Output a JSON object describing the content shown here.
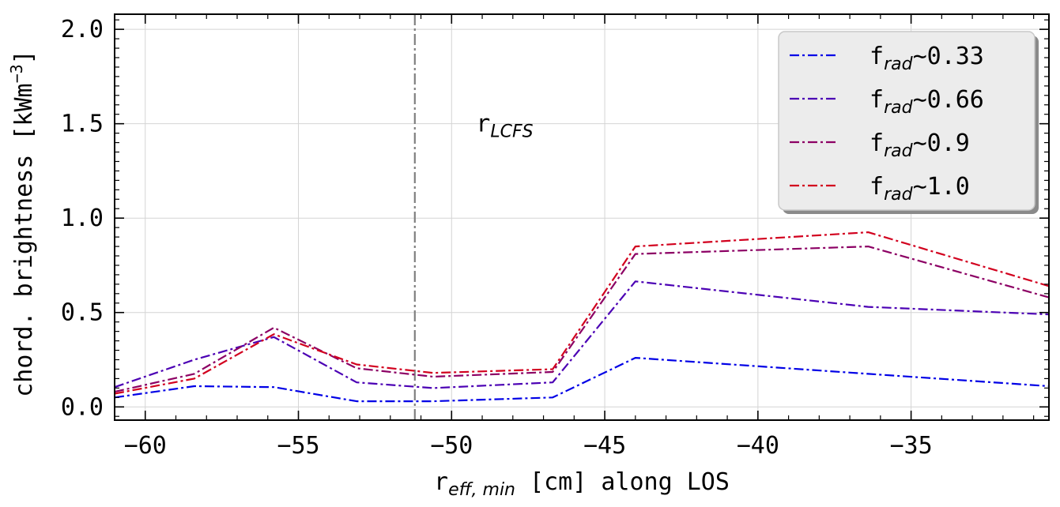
{
  "chart_data": {
    "type": "line",
    "xlabel": {
      "main": "r",
      "sub": "eff, min",
      "rest": " [cm] along LOS"
    },
    "ylabel": {
      "main": "chord. brightness [kWm",
      "sup": "−3",
      "end": "]"
    },
    "xlim": [
      -61.0,
      -30.5
    ],
    "ylim": [
      -0.07,
      2.08
    ],
    "xticks": [
      -60,
      -55,
      -50,
      -45,
      -40,
      -35
    ],
    "xtick_labels": [
      "−60",
      "−55",
      "−50",
      "−45",
      "−40",
      "−35"
    ],
    "yticks": [
      0.0,
      0.5,
      1.0,
      1.5,
      2.0
    ],
    "ytick_labels": [
      "0.0",
      "0.5",
      "1.0",
      "1.5",
      "2.0"
    ],
    "grid": true,
    "legend_position": "top-right",
    "x": [
      -61.0,
      -58.4,
      -55.8,
      -53.1,
      -50.6,
      -46.7,
      -44.0,
      -36.4,
      -30.5
    ],
    "series": [
      {
        "name": "f_rad ~ 0.33",
        "label_main": "f",
        "label_sub": "rad",
        "label_rest": "∼0.33",
        "color": "#0000e6",
        "values": [
          0.05,
          0.11,
          0.105,
          0.03,
          0.03,
          0.05,
          0.26,
          0.175,
          0.11
        ]
      },
      {
        "name": "f_rad ~ 0.66",
        "label_main": "f",
        "label_sub": "rad",
        "label_rest": "∼0.66",
        "color": "#4b00b4",
        "values": [
          0.105,
          0.25,
          0.37,
          0.13,
          0.1,
          0.13,
          0.665,
          0.53,
          0.49
        ]
      },
      {
        "name": "f_rad ~ 0.9",
        "label_main": "f",
        "label_sub": "rad",
        "label_rest": "∼0.9",
        "color": "#8c0064",
        "values": [
          0.08,
          0.175,
          0.42,
          0.205,
          0.16,
          0.185,
          0.81,
          0.85,
          0.58
        ]
      },
      {
        "name": "f_rad ~ 1.0",
        "label_main": "f",
        "label_sub": "rad",
        "label_rest": "∼1.0",
        "color": "#d2001e",
        "values": [
          0.07,
          0.15,
          0.385,
          0.225,
          0.18,
          0.2,
          0.85,
          0.925,
          0.64
        ]
      }
    ],
    "annotations": [
      {
        "type": "vline",
        "x": -51.2,
        "color": "#808080"
      },
      {
        "type": "text",
        "main": "r",
        "sub": "LCFS",
        "x": -49.2,
        "y": 1.5
      }
    ]
  }
}
